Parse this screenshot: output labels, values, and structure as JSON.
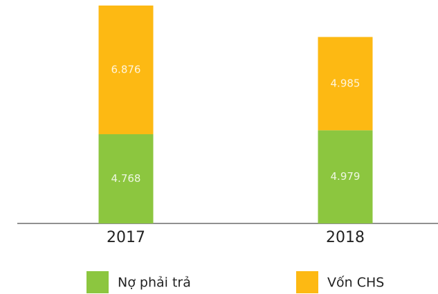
{
  "chart_data": {
    "type": "stacked_bar",
    "categories": [
      "2017",
      "2018"
    ],
    "series": [
      {
        "name": "Nợ phải trả",
        "color": "#8cc63f",
        "values": [
          4.768,
          4.979
        ]
      },
      {
        "name": "Vốn CHS",
        "color": "#fdb913",
        "values": [
          6.876,
          4.985
        ]
      }
    ]
  }
}
